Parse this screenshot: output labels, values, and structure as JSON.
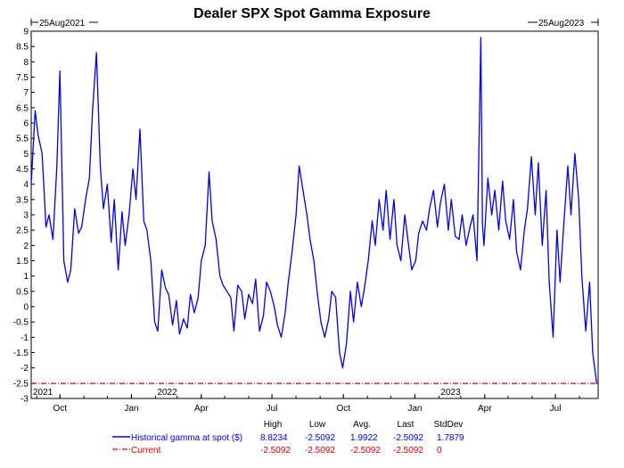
{
  "chart_data": {
    "type": "line",
    "title": "Dealer SPX Spot Gamma Exposure",
    "range_start": "25Aug2021",
    "range_end": "25Aug2023",
    "ylim": [
      -3,
      9
    ],
    "yticks": [
      "9",
      "8.5",
      "8",
      "7.5",
      "7",
      "6.5",
      "6",
      "5.5",
      "5",
      "4.5",
      "4",
      "3.5",
      "3",
      "2.5",
      "2",
      "1.5",
      "1",
      "0.5",
      "0",
      "-0.5",
      "-1",
      "-1.5",
      "-2",
      "-2.5",
      "-3"
    ],
    "xlim": [
      "2021-08-25",
      "2023-08-25"
    ],
    "month_ticks": [
      {
        "label": "Oct",
        "date": "2021-10-01"
      },
      {
        "label": "Jan",
        "date": "2022-01-01"
      },
      {
        "label": "Apr",
        "date": "2022-04-01"
      },
      {
        "label": "Jul",
        "date": "2022-07-01"
      },
      {
        "label": "Oct",
        "date": "2022-10-01"
      },
      {
        "label": "Jan",
        "date": "2023-01-01"
      },
      {
        "label": "Apr",
        "date": "2023-04-01"
      },
      {
        "label": "Jul",
        "date": "2023-07-01"
      }
    ],
    "year_labels": [
      {
        "label": "2021",
        "date": "2021-08-25"
      },
      {
        "label": "2022",
        "date": "2022-02-01"
      },
      {
        "label": "2023",
        "date": "2023-02-01"
      }
    ],
    "stats_headers": [
      "High",
      "Low",
      "Avg.",
      "Last",
      "StdDev"
    ],
    "series": [
      {
        "name": "Historical gamma at spot ($)",
        "color": "#0000e6",
        "style": "solid",
        "stats": [
          "8.8234",
          "-2.5092",
          "1.9922",
          "-2.5092",
          "1.7879"
        ],
        "x": [
          "2021-08-25",
          "2021-08-30",
          "2021-09-03",
          "2021-09-08",
          "2021-09-13",
          "2021-09-17",
          "2021-09-22",
          "2021-09-27",
          "2021-10-01",
          "2021-10-06",
          "2021-10-11",
          "2021-10-15",
          "2021-10-20",
          "2021-10-25",
          "2021-10-29",
          "2021-11-03",
          "2021-11-08",
          "2021-11-12",
          "2021-11-17",
          "2021-11-22",
          "2021-11-26",
          "2021-12-01",
          "2021-12-06",
          "2021-12-10",
          "2021-12-15",
          "2021-12-20",
          "2021-12-24",
          "2021-12-29",
          "2022-01-03",
          "2022-01-07",
          "2022-01-12",
          "2022-01-17",
          "2022-01-21",
          "2022-01-26",
          "2022-01-31",
          "2022-02-04",
          "2022-02-09",
          "2022-02-14",
          "2022-02-18",
          "2022-02-23",
          "2022-02-28",
          "2022-03-04",
          "2022-03-09",
          "2022-03-14",
          "2022-03-18",
          "2022-03-23",
          "2022-03-28",
          "2022-04-01",
          "2022-04-06",
          "2022-04-11",
          "2022-04-15",
          "2022-04-20",
          "2022-04-25",
          "2022-04-29",
          "2022-05-04",
          "2022-05-09",
          "2022-05-13",
          "2022-05-18",
          "2022-05-23",
          "2022-05-27",
          "2022-06-01",
          "2022-06-06",
          "2022-06-10",
          "2022-06-15",
          "2022-06-20",
          "2022-06-24",
          "2022-06-29",
          "2022-07-04",
          "2022-07-08",
          "2022-07-13",
          "2022-07-18",
          "2022-07-22",
          "2022-07-27",
          "2022-08-01",
          "2022-08-05",
          "2022-08-10",
          "2022-08-15",
          "2022-08-19",
          "2022-08-24",
          "2022-08-29",
          "2022-09-02",
          "2022-09-07",
          "2022-09-12",
          "2022-09-16",
          "2022-09-21",
          "2022-09-26",
          "2022-09-30",
          "2022-10-05",
          "2022-10-10",
          "2022-10-14",
          "2022-10-19",
          "2022-10-24",
          "2022-10-28",
          "2022-11-02",
          "2022-11-07",
          "2022-11-11",
          "2022-11-16",
          "2022-11-21",
          "2022-11-25",
          "2022-11-30",
          "2022-12-05",
          "2022-12-09",
          "2022-12-14",
          "2022-12-19",
          "2022-12-23",
          "2022-12-28",
          "2023-01-02",
          "2023-01-06",
          "2023-01-11",
          "2023-01-16",
          "2023-01-20",
          "2023-01-25",
          "2023-01-30",
          "2023-02-03",
          "2023-02-08",
          "2023-02-13",
          "2023-02-17",
          "2023-02-22",
          "2023-02-27",
          "2023-03-03",
          "2023-03-08",
          "2023-03-13",
          "2023-03-17",
          "2023-03-22",
          "2023-03-27",
          "2023-03-29",
          "2023-03-31",
          "2023-04-05",
          "2023-04-10",
          "2023-04-14",
          "2023-04-19",
          "2023-04-24",
          "2023-04-28",
          "2023-05-03",
          "2023-05-08",
          "2023-05-12",
          "2023-05-17",
          "2023-05-22",
          "2023-05-26",
          "2023-05-31",
          "2023-06-05",
          "2023-06-09",
          "2023-06-14",
          "2023-06-19",
          "2023-06-23",
          "2023-06-28",
          "2023-07-03",
          "2023-07-07",
          "2023-07-12",
          "2023-07-17",
          "2023-07-21",
          "2023-07-26",
          "2023-07-31",
          "2023-08-04",
          "2023-08-09",
          "2023-08-14",
          "2023-08-18",
          "2023-08-23",
          "2023-08-25"
        ],
        "y": [
          4.0,
          6.4,
          5.6,
          5.0,
          2.6,
          3.0,
          2.2,
          4.6,
          7.7,
          1.5,
          0.8,
          1.2,
          3.2,
          2.4,
          2.6,
          3.5,
          4.2,
          6.4,
          8.3,
          4.6,
          3.2,
          4.0,
          2.1,
          3.5,
          1.2,
          3.1,
          2.0,
          3.0,
          4.5,
          3.5,
          5.8,
          2.8,
          2.5,
          1.5,
          -0.5,
          -0.8,
          1.2,
          0.6,
          0.4,
          -0.6,
          0.2,
          -0.9,
          -0.4,
          -0.7,
          0.4,
          -0.2,
          0.3,
          1.5,
          2.0,
          4.4,
          2.8,
          2.2,
          1.0,
          0.7,
          0.5,
          0.3,
          -0.8,
          0.7,
          0.5,
          -0.4,
          0.4,
          0.1,
          0.9,
          -0.8,
          -0.3,
          0.8,
          0.5,
          0.0,
          -0.6,
          -1.0,
          -0.2,
          0.8,
          1.8,
          3.0,
          4.6,
          3.8,
          3.0,
          2.2,
          1.5,
          0.3,
          -0.5,
          -1.0,
          -0.4,
          0.5,
          0.3,
          -1.5,
          -2.0,
          -1.2,
          0.5,
          -0.5,
          0.8,
          0.0,
          0.6,
          1.5,
          2.8,
          2.0,
          3.5,
          2.5,
          3.8,
          2.2,
          3.5,
          2.0,
          1.5,
          3.0,
          2.2,
          1.2,
          1.5,
          2.4,
          2.8,
          2.5,
          3.2,
          3.8,
          2.6,
          3.4,
          4.0,
          2.5,
          3.5,
          2.3,
          2.2,
          3.0,
          2.0,
          2.6,
          3.0,
          1.5,
          8.8,
          2.7,
          2.0,
          4.2,
          3.0,
          3.8,
          2.5,
          4.1,
          2.8,
          2.2,
          3.5,
          1.8,
          1.2,
          2.5,
          3.2,
          4.9,
          3.0,
          4.7,
          2.0,
          3.8,
          0.8,
          -1.0,
          2.5,
          0.8,
          2.8,
          4.6,
          3.0,
          5.0,
          3.5,
          1.0,
          -0.8,
          0.8,
          -1.5,
          -2.5,
          -2.5092
        ]
      },
      {
        "name": "Current",
        "color": "#e60000",
        "style": "dashdot",
        "stats": [
          "-2.5092",
          "-2.5092",
          "-2.5092",
          "-2.5092",
          "0"
        ],
        "y": -2.5092
      }
    ],
    "grid": false,
    "legend_position": "bottom"
  }
}
